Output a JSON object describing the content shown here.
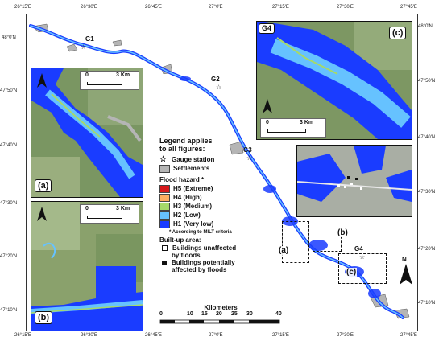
{
  "lon_ticks_top": [
    "26°15'E",
    "26°30'E",
    "26°45'E",
    "27°0'E",
    "27°15'E",
    "27°30'E",
    "27°45'E"
  ],
  "lon_ticks_bottom": [
    "26°15'E",
    "26°30'E",
    "26°45'E",
    "27°0'E",
    "27°15'E",
    "27°30'E",
    "27°45'E"
  ],
  "lat_ticks_left": [
    "48°0'N",
    "47°50'N",
    "47°40'N",
    "47°30'N",
    "47°20'N",
    "47°10'N"
  ],
  "lat_ticks_right": [
    "48°0'N",
    "47°50'N",
    "47°40'N",
    "47°30'N",
    "47°20'N",
    "47°10'N"
  ],
  "gauges": [
    "G1",
    "G2",
    "G3",
    "G4",
    "G4"
  ],
  "legend": {
    "title_line1": "Legend applies",
    "title_line2": "to all figures:",
    "gauge": "Gauge station",
    "settlements": "Settlements",
    "hazard_title": "Flood hazard *",
    "hazard": [
      {
        "label": "H5 (Extreme)",
        "color": "#d7191c"
      },
      {
        "label": "H4 (High)",
        "color": "#fdae61"
      },
      {
        "label": "H3 (Medium)",
        "color": "#a6d96a"
      },
      {
        "label": "H2 (Low)",
        "color": "#66c2ff"
      },
      {
        "label": "H1 (Very low)",
        "color": "#1a3cff"
      }
    ],
    "note": "* According to MILT criteria",
    "builtup_title": "Built-up area:",
    "unaffected_1": "Buildings unaffected",
    "unaffected_2": "by floods",
    "affected_1": "Buildings potentially",
    "affected_2": "affected by floods"
  },
  "scale": {
    "title": "Kilometers",
    "ticks": [
      "0",
      "10",
      "15",
      "20",
      "25",
      "30",
      "40"
    ]
  },
  "panels": {
    "a": {
      "label": "(a)",
      "scale_0": "0",
      "scale_end": "3 Km"
    },
    "b": {
      "label": "(b)",
      "scale_0": "0",
      "scale_end": "3 Km"
    },
    "c": {
      "label": "(c)",
      "scale_0": "0",
      "scale_end": "3 Km"
    }
  },
  "callouts": [
    "(a)",
    "(b)",
    "(c)"
  ],
  "north": "N"
}
